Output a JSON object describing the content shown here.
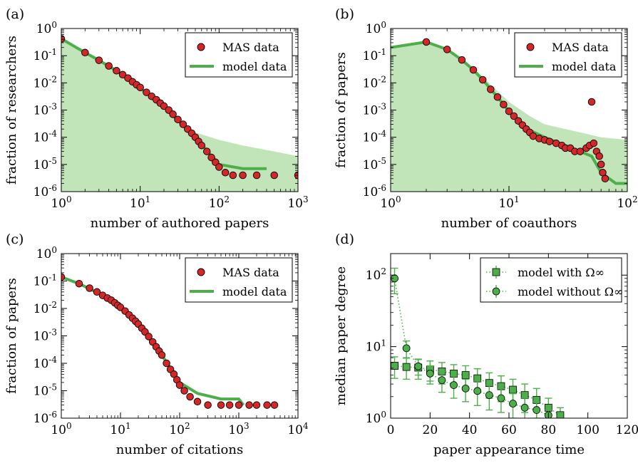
{
  "chart_data": [
    {
      "panel_label": "(a)",
      "type": "scatter",
      "xlabel": "number of authored papers",
      "ylabel": "fraction of researchers",
      "xscale": "log",
      "yscale": "log",
      "xlim": [
        1,
        1000
      ],
      "ylim": [
        1e-06,
        1
      ],
      "xticks": [
        "10^0",
        "10^1",
        "10^2",
        "10^3"
      ],
      "yticks": [
        "10^-6",
        "10^-5",
        "10^-4",
        "10^-3",
        "10^-2",
        "10^-1",
        "10^0"
      ],
      "legend_position": "top-right",
      "series": [
        {
          "name": "MAS data",
          "kind": "markers",
          "color": "#d62728",
          "x": [
            1,
            2,
            3,
            4,
            5,
            6,
            7,
            8,
            9,
            10,
            12,
            14,
            16,
            18,
            20,
            23,
            26,
            30,
            35,
            40,
            45,
            50,
            55,
            60,
            70,
            80,
            90,
            100,
            120,
            150,
            200,
            300,
            500,
            1000
          ],
          "y": [
            0.42,
            0.13,
            0.068,
            0.042,
            0.028,
            0.02,
            0.015,
            0.011,
            0.0085,
            0.0068,
            0.0045,
            0.0032,
            0.0024,
            0.0018,
            0.0014,
            0.001,
            0.0007,
            0.00045,
            0.0003,
            0.0002,
            0.00014,
            0.0001,
            7e-05,
            5e-05,
            3e-05,
            1.8e-05,
            1.2e-05,
            8e-06,
            5e-06,
            4e-06,
            4e-06,
            4e-06,
            4e-06,
            4e-06
          ]
        },
        {
          "name": "model data",
          "kind": "line",
          "color": "#4daf4a",
          "x": [
            1,
            2,
            3,
            5,
            10,
            20,
            50,
            100,
            200,
            400
          ],
          "y": [
            0.42,
            0.13,
            0.068,
            0.028,
            0.0065,
            0.0013,
            0.0001,
            1e-05,
            7e-06,
            7e-06
          ]
        },
        {
          "name": "",
          "kind": "band",
          "color": "#a6d99b",
          "x": [
            1,
            2,
            5,
            10,
            20,
            30,
            50,
            100,
            200,
            500,
            1000
          ],
          "y": [
            0.42,
            0.13,
            0.028,
            0.006,
            0.0012,
            0.0004,
            0.00015,
            8e-05,
            5e-05,
            3e-05,
            2e-05
          ]
        }
      ]
    },
    {
      "panel_label": "(b)",
      "type": "scatter",
      "xlabel": "number of coauthors",
      "ylabel": "fraction of papers",
      "xscale": "log",
      "yscale": "log",
      "xlim": [
        1,
        100
      ],
      "ylim": [
        1e-06,
        1
      ],
      "xticks": [
        "10^0",
        "10^1",
        "10^2"
      ],
      "yticks": [
        "10^-6",
        "10^-5",
        "10^-4",
        "10^-3",
        "10^-2",
        "10^-1",
        "10^0"
      ],
      "legend_position": "top-right",
      "series": [
        {
          "name": "MAS data",
          "kind": "markers",
          "color": "#d62728",
          "x": [
            2,
            3,
            4,
            5,
            6,
            7,
            8,
            9,
            10,
            11,
            12,
            13,
            14,
            15,
            16,
            18,
            20,
            22,
            25,
            28,
            30,
            33,
            36,
            40,
            45,
            48,
            50,
            52,
            55,
            58,
            60,
            62,
            65
          ],
          "y": [
            0.32,
            0.17,
            0.07,
            0.03,
            0.013,
            0.0058,
            0.003,
            0.0016,
            0.0009,
            0.0006,
            0.0004,
            0.00028,
            0.0002,
            0.00015,
            0.00011,
            9e-05,
            8e-05,
            7e-05,
            6e-05,
            5e-05,
            4e-05,
            4e-05,
            3e-05,
            3e-05,
            4e-05,
            5e-05,
            0.002,
            6e-05,
            3e-05,
            2e-05,
            1e-05,
            5e-06,
            3e-06
          ]
        },
        {
          "name": "model data",
          "kind": "line",
          "color": "#4daf4a",
          "x": [
            1,
            2,
            3,
            4,
            5,
            6,
            8,
            10,
            15,
            20,
            30,
            40,
            50,
            60,
            80,
            100
          ],
          "y": [
            0.2,
            0.32,
            0.17,
            0.07,
            0.03,
            0.013,
            0.003,
            0.0009,
            0.00018,
            0.0001,
            5e-05,
            3e-05,
            2e-05,
            5e-06,
            2e-06,
            2e-06
          ]
        },
        {
          "name": "",
          "kind": "band",
          "color": "#a6d99b",
          "x": [
            1,
            2,
            3,
            5,
            8,
            10,
            15,
            20,
            40,
            60,
            100
          ],
          "y": [
            0.2,
            0.32,
            0.17,
            0.035,
            0.005,
            0.002,
            0.0006,
            0.0003,
            0.00015,
            0.0001,
            8e-05
          ]
        }
      ]
    },
    {
      "panel_label": "(c)",
      "type": "scatter",
      "xlabel": "number of citations",
      "ylabel": "fraction of papers",
      "xscale": "log",
      "yscale": "log",
      "xlim": [
        1,
        10000
      ],
      "ylim": [
        1e-06,
        1
      ],
      "xticks": [
        "10^0",
        "10^1",
        "10^2",
        "10^3",
        "10^4"
      ],
      "yticks": [
        "10^-6",
        "10^-5",
        "10^-4",
        "10^-3",
        "10^-2",
        "10^-1",
        "10^0"
      ],
      "legend_position": "top-right",
      "series": [
        {
          "name": "MAS data",
          "kind": "markers",
          "color": "#d62728",
          "x": [
            1,
            2,
            3,
            4,
            5,
            6,
            7,
            8,
            9,
            10,
            12,
            14,
            16,
            18,
            20,
            23,
            26,
            30,
            35,
            40,
            45,
            50,
            60,
            70,
            80,
            90,
            100,
            120,
            150,
            200,
            300,
            500,
            700,
            1000,
            1500,
            2000,
            3000,
            4000
          ],
          "y": [
            0.14,
            0.08,
            0.055,
            0.04,
            0.03,
            0.024,
            0.02,
            0.016,
            0.013,
            0.011,
            0.008,
            0.0058,
            0.0044,
            0.0034,
            0.0027,
            0.0019,
            0.0014,
            0.00095,
            0.0006,
            0.0004,
            0.00028,
            0.0002,
            0.0001,
            6e-05,
            4e-05,
            2.5e-05,
            1.6e-05,
            1e-05,
            6e-06,
            4e-06,
            3e-06,
            3e-06,
            3e-06,
            3e-06,
            3e-06,
            3e-06,
            3e-06,
            3e-06
          ]
        },
        {
          "name": "model data",
          "kind": "line",
          "color": "#4daf4a",
          "x": [
            1,
            2,
            5,
            10,
            20,
            50,
            100,
            200,
            500,
            1000,
            1200
          ],
          "y": [
            0.14,
            0.08,
            0.03,
            0.011,
            0.0027,
            0.0002,
            2e-05,
            8e-06,
            5e-06,
            5e-06,
            3e-06
          ]
        }
      ]
    },
    {
      "panel_label": "(d)",
      "type": "scatter",
      "xlabel": "paper appearance time",
      "ylabel": "median paper degree",
      "xscale": "linear",
      "yscale": "log",
      "xlim": [
        0,
        120
      ],
      "ylim": [
        1,
        200
      ],
      "xticks": [
        "0",
        "20",
        "40",
        "60",
        "80",
        "100",
        "120"
      ],
      "yticks": [
        "10^0",
        "10^1",
        "10^2"
      ],
      "legend_position": "top-right",
      "series": [
        {
          "name": "model with Ω∞",
          "kind": "square-markers",
          "color": "#4daf4a",
          "x": [
            2,
            8,
            14,
            20,
            26,
            32,
            38,
            44,
            50,
            56,
            62,
            68,
            74,
            80,
            86
          ],
          "y": [
            5.4,
            5.2,
            5.1,
            4.8,
            4.5,
            4.2,
            4.0,
            3.6,
            3.1,
            2.8,
            2.5,
            2.1,
            1.8,
            1.4,
            1.1
          ],
          "err": [
            1.8,
            1.7,
            1.6,
            1.5,
            1.5,
            1.4,
            1.4,
            1.3,
            1.2,
            1.1,
            1.0,
            0.9,
            0.8,
            0.5,
            0.3
          ]
        },
        {
          "name": "model without Ω∞",
          "kind": "circle-markers",
          "color": "#4daf4a",
          "x": [
            2,
            8,
            14,
            20,
            26,
            32,
            38,
            44,
            50,
            56,
            62,
            68,
            74,
            80
          ],
          "y": [
            90,
            9.5,
            5.3,
            4.2,
            3.4,
            2.9,
            2.6,
            2.4,
            2.1,
            1.9,
            1.6,
            1.4,
            1.3,
            1.1
          ],
          "err": [
            35,
            2.5,
            1.3,
            1.2,
            1.1,
            1.0,
            0.9,
            0.9,
            0.8,
            0.7,
            0.6,
            0.5,
            0.4,
            0.2
          ]
        }
      ]
    }
  ]
}
